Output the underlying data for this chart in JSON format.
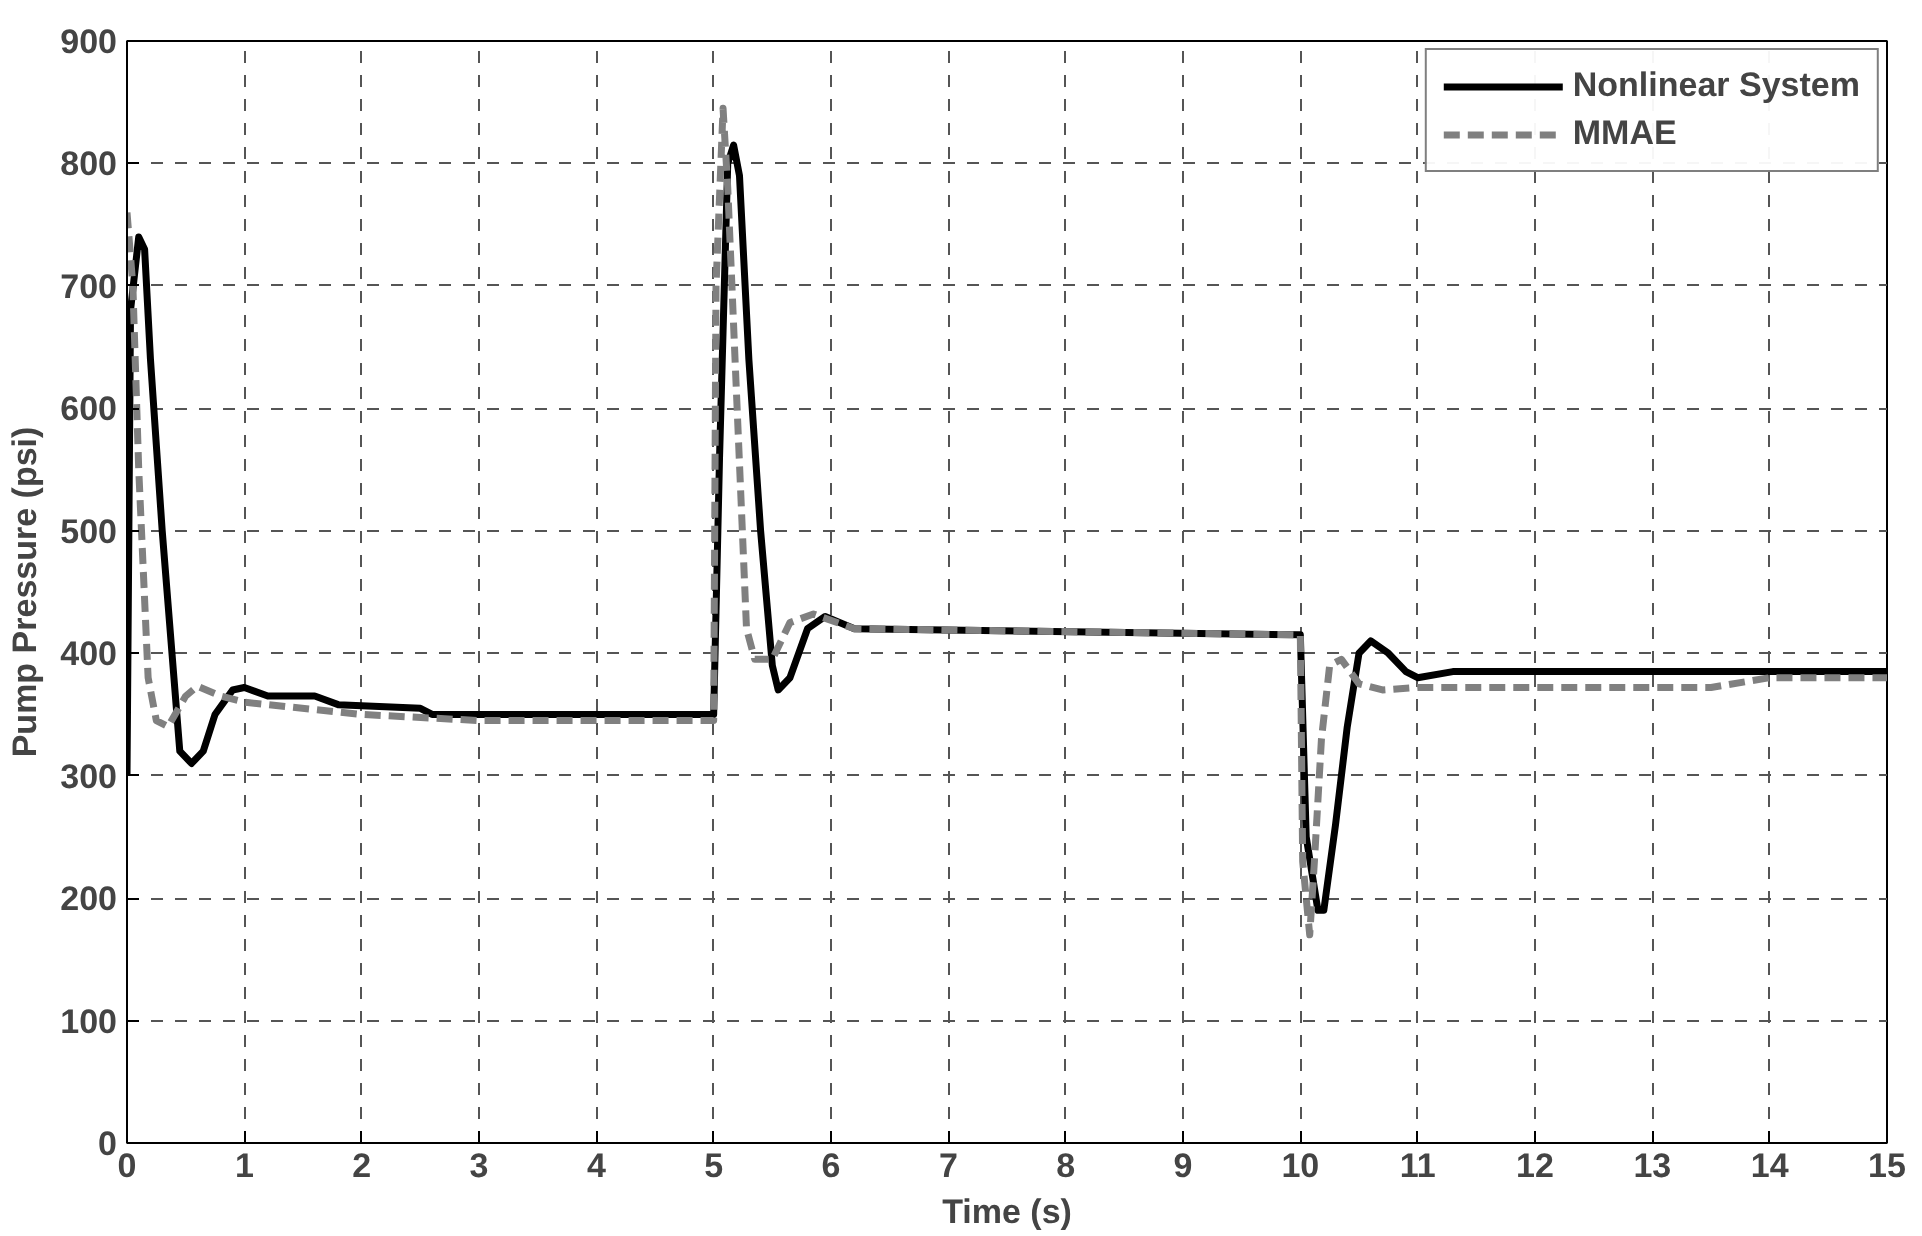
{
  "chart_data": {
    "type": "line",
    "xlabel": "Time (s)",
    "ylabel": "Pump Pressure (psi)",
    "xlim": [
      0,
      15
    ],
    "ylim": [
      0,
      900
    ],
    "xticks": [
      0,
      1,
      2,
      3,
      4,
      5,
      6,
      7,
      8,
      9,
      10,
      11,
      12,
      13,
      14,
      15
    ],
    "yticks": [
      0,
      100,
      200,
      300,
      400,
      500,
      600,
      700,
      800,
      900
    ],
    "grid": true,
    "legend": "top right",
    "marker": "none",
    "series": [
      {
        "name": "Nonlinear System",
        "color": "#000000",
        "line_style": "solid",
        "x": [
          0,
          0.03,
          0.1,
          0.15,
          0.2,
          0.3,
          0.4,
          0.45,
          0.55,
          0.65,
          0.75,
          0.9,
          1.0,
          1.2,
          1.6,
          1.8,
          2.5,
          2.6,
          5.0,
          5.05,
          5.12,
          5.17,
          5.22,
          5.3,
          5.4,
          5.5,
          5.55,
          5.65,
          5.8,
          5.95,
          6.2,
          10.0,
          10.05,
          10.15,
          10.2,
          10.3,
          10.4,
          10.5,
          10.6,
          10.75,
          10.9,
          11.0,
          11.3,
          15
        ],
        "values": [
          300,
          680,
          740,
          730,
          640,
          500,
          380,
          320,
          310,
          320,
          350,
          370,
          372,
          365,
          365,
          358,
          355,
          350,
          350,
          560,
          800,
          815,
          790,
          640,
          500,
          390,
          370,
          380,
          420,
          430,
          420,
          415,
          250,
          190,
          190,
          260,
          340,
          400,
          410,
          400,
          385,
          380,
          385,
          385
        ]
      },
      {
        "name": "MMAE",
        "color": "#808080",
        "line_style": "dashed",
        "x": [
          0,
          0.05,
          0.1,
          0.18,
          0.25,
          0.35,
          0.5,
          0.6,
          0.8,
          1.0,
          2.0,
          3.0,
          5.0,
          5.02,
          5.08,
          5.12,
          5.2,
          5.28,
          5.35,
          5.5,
          5.65,
          5.85,
          6.2,
          10.0,
          10.02,
          10.08,
          10.12,
          10.18,
          10.25,
          10.35,
          10.5,
          10.7,
          11.0,
          13.5,
          14,
          15
        ],
        "values": [
          760,
          700,
          550,
          380,
          345,
          340,
          365,
          373,
          365,
          360,
          350,
          345,
          345,
          700,
          845,
          780,
          600,
          420,
          395,
          395,
          425,
          432,
          420,
          415,
          230,
          170,
          230,
          330,
          390,
          395,
          375,
          370,
          372,
          372,
          380,
          380
        ]
      }
    ]
  }
}
